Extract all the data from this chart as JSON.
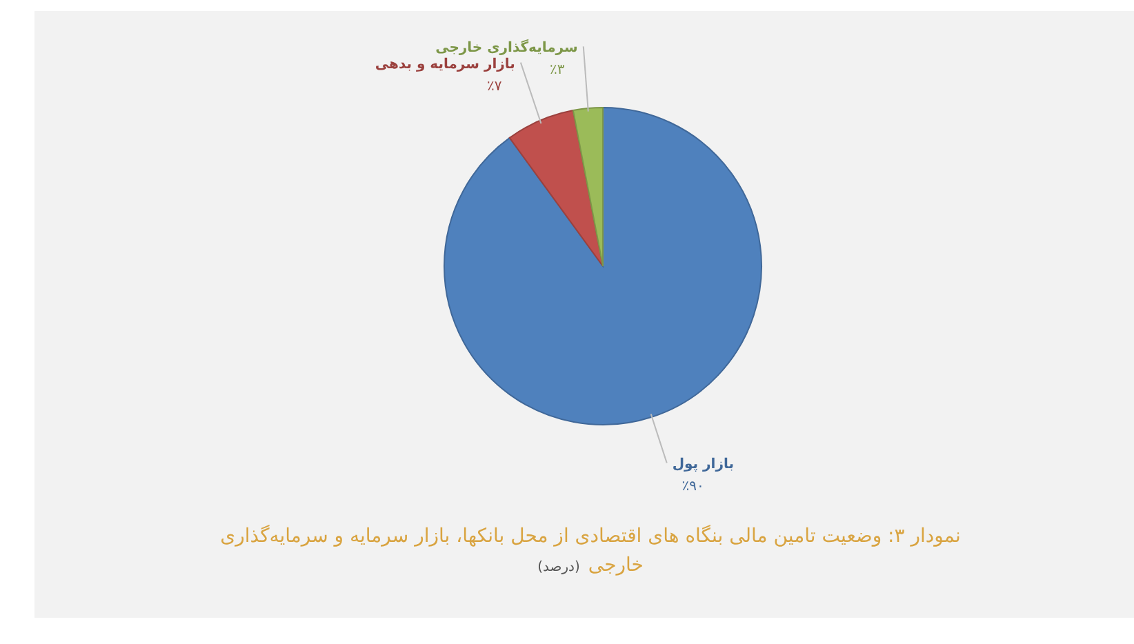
{
  "chart_data": {
    "type": "pie",
    "title": "نمودار ۳: وضعیت تامین مالی بنگاه های اقتصادی از محل بانکها، بازار سرمایه و سرمایه‌گذاری خارجی",
    "subtitle": "(درصد)",
    "categories": [
      "بازار پول",
      "بازار سرمایه و بدهی",
      "سرمایه‌گذاری خارجی"
    ],
    "values": [
      90,
      7,
      3
    ],
    "colors": [
      "#4f81bd",
      "#c0504d",
      "#9bbb59"
    ],
    "value_labels": [
      "٪۹۰",
      "٪۷",
      "٪۳"
    ]
  }
}
